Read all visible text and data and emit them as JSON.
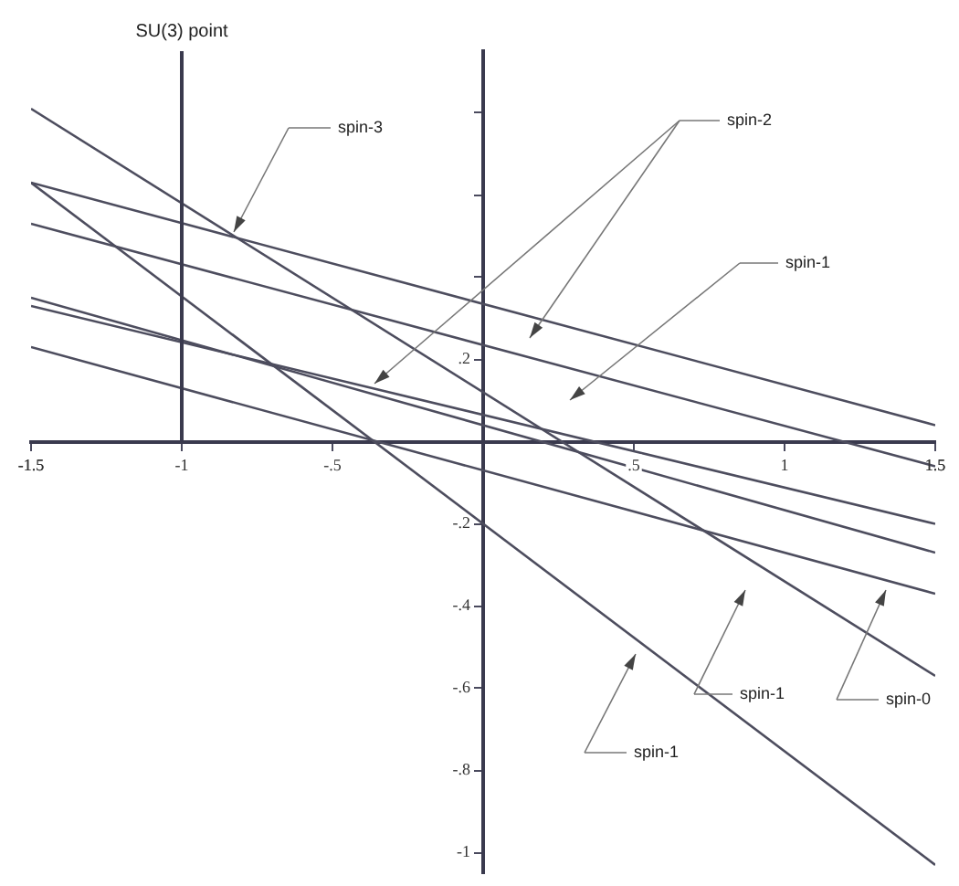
{
  "chart_data": {
    "type": "line",
    "x": [
      -1.5,
      1.5
    ],
    "series": [
      {
        "color": "#4d4d5e",
        "values": [
          0.63,
          0.04
        ]
      },
      {
        "color": "#4d4d5e",
        "values": [
          0.53,
          -0.06
        ]
      },
      {
        "color": "#4d4d5e",
        "values": [
          0.81,
          -0.57
        ]
      },
      {
        "color": "#4d4d5e",
        "values": [
          0.63,
          -1.03
        ]
      },
      {
        "color": "#4d4d5e",
        "values": [
          0.35,
          -0.27
        ]
      },
      {
        "color": "#4d4d5e",
        "values": [
          0.33,
          -0.2
        ]
      },
      {
        "color": "#4d4d5e",
        "values": [
          0.23,
          -0.37
        ]
      }
    ],
    "xlim": [
      -1.5,
      1.5
    ],
    "xticks": [
      {
        "value": -1.5,
        "label": "-1.5"
      },
      {
        "value": -1,
        "label": "-1"
      },
      {
        "value": -0.5,
        "label": "-.5"
      },
      {
        "value": 0.5,
        "label": ".5"
      },
      {
        "value": 1,
        "label": "1"
      },
      {
        "value": 1.5,
        "label": "1.5"
      }
    ],
    "ylim": [
      -1.05,
      0.95
    ],
    "yticks": [
      {
        "value": -1,
        "label": "-1"
      },
      {
        "value": -0.8,
        "label": "-.8"
      },
      {
        "value": -0.6,
        "label": "-.6"
      },
      {
        "value": -0.4,
        "label": "-.4"
      },
      {
        "value": -0.2,
        "label": "-.2"
      },
      {
        "value": 0.2,
        "label": ".2"
      },
      {
        "value": 0.4,
        "label": null
      },
      {
        "value": 0.6,
        "label": null
      },
      {
        "value": 0.8,
        "label": null
      }
    ],
    "ref_lines": [
      {
        "axis": "x",
        "value": -1,
        "label": "SU(3) point",
        "color": "#3a3a4e"
      }
    ],
    "annotations": [
      "spin-3",
      "spin-2",
      "spin-1",
      "spin-1",
      "spin-1",
      "spin-0"
    ],
    "grid": false,
    "legend": false,
    "line_style": "solid"
  }
}
